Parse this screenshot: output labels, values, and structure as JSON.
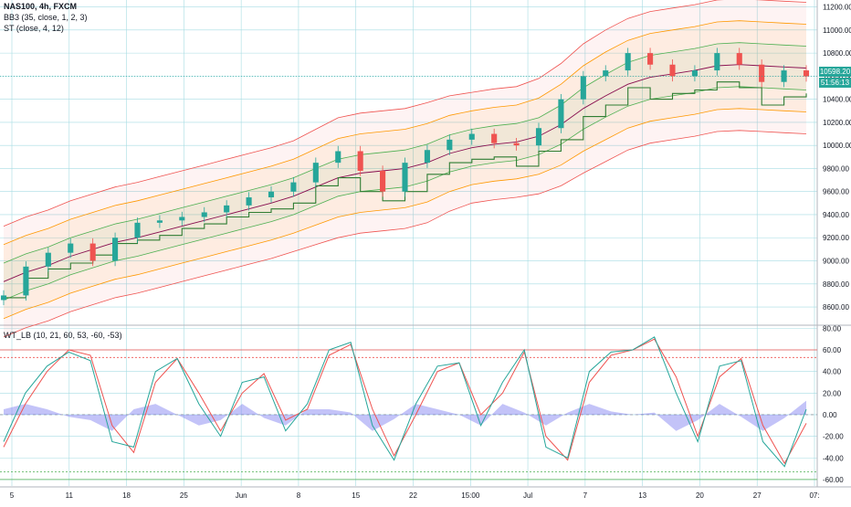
{
  "legend": {
    "symbol": "NAS100, 4h, FXCM",
    "bb": "BB3 (35, close, 1, 2, 3)",
    "st": "ST (close, 4, 12)",
    "wt": "WT_LB (10, 21, 60, 53, -60, -53)"
  },
  "price_tag": {
    "last": "10598.20",
    "countdown": "51:56:13"
  },
  "colors": {
    "up": "#26a69a",
    "down": "#ef5350",
    "wt1": "#26a69a",
    "wt2": "#ef5350",
    "histogram": "#7b7bf0",
    "ob_level": "#ef5350",
    "os_level": "#4caf50",
    "bb_outer": "#ef5350",
    "bb_mid": "#ff9800",
    "bb_inner": "#4caf50",
    "basis": "#880e4f",
    "st_up": "#2e7d32",
    "st_down": "#ef5350"
  },
  "chart_data": [
    {
      "type": "line",
      "title": "NAS100, 4h, FXCM",
      "y_ticks": [
        "11200.00",
        "11000.00",
        "10800.00",
        "10600.00",
        "10400.00",
        "10200.00",
        "10000.00",
        "9800.00",
        "9600.00",
        "9400.00",
        "9200.00",
        "9000.00",
        "8800.00",
        "8600.00"
      ],
      "ylim": [
        8450,
        11260
      ],
      "x_ticks": [
        "5",
        "11",
        "18",
        "25",
        "Jun",
        "8",
        "15",
        "22",
        "15:00",
        "Jul",
        "7",
        "13",
        "20",
        "27",
        "07:"
      ],
      "x": [
        "May 5",
        "May 8",
        "May 11",
        "May 13",
        "May 15",
        "May 18",
        "May 20",
        "May 22",
        "May 25",
        "May 27",
        "May 29",
        "Jun 1",
        "Jun 3",
        "Jun 5",
        "Jun 8",
        "Jun 10",
        "Jun 12",
        "Jun 15",
        "Jun 17",
        "Jun 19",
        "Jun 22",
        "Jun 24",
        "Jun 26",
        "Jun 29",
        "Jul 1",
        "Jul 3",
        "Jul 7",
        "Jul 9",
        "Jul 11",
        "Jul 13",
        "Jul 15",
        "Jul 17",
        "Jul 20",
        "Jul 22",
        "Jul 24",
        "Jul 27",
        "Jul 29"
      ],
      "series": [
        {
          "values": [
            8700,
            8950,
            9070,
            9150,
            9000,
            9200,
            9330,
            9350,
            9380,
            9420,
            9480,
            9550,
            9600,
            9680,
            9850,
            9950,
            9780,
            9600,
            9850,
            9960,
            10050,
            10100,
            10020,
            10000,
            10150,
            10400,
            10600,
            10650,
            10800,
            10700,
            10600,
            10650,
            10800,
            10700,
            10550,
            10650,
            10598
          ]
        }
      ],
      "st_values": [
        8680,
        8850,
        8930,
        8980,
        9050,
        9150,
        9180,
        9220,
        9280,
        9320,
        9380,
        9420,
        9450,
        9500,
        9650,
        9720,
        9600,
        9520,
        9600,
        9750,
        9850,
        9880,
        9900,
        9820,
        9950,
        10050,
        10250,
        10350,
        10500,
        10400,
        10450,
        10480,
        10550,
        10500,
        10350,
        10420,
        10450
      ],
      "bb_basis": [
        8820,
        8900,
        8960,
        9040,
        9100,
        9160,
        9200,
        9250,
        9300,
        9350,
        9400,
        9450,
        9500,
        9560,
        9640,
        9720,
        9760,
        9780,
        9800,
        9850,
        9930,
        9980,
        10010,
        10030,
        10080,
        10180,
        10320,
        10430,
        10530,
        10590,
        10620,
        10650,
        10690,
        10700,
        10690,
        10680,
        10670
      ],
      "bb_inner_offset": [
        160,
        160,
        160,
        160,
        160,
        160,
        160,
        160,
        160,
        160,
        160,
        160,
        160,
        160,
        160,
        160,
        160,
        160,
        160,
        160,
        160,
        160,
        160,
        160,
        160,
        170,
        180,
        185,
        190,
        190,
        190,
        190,
        190,
        190,
        190,
        190,
        190
      ],
      "bb_mid_offset": [
        320,
        320,
        320,
        320,
        320,
        320,
        320,
        320,
        320,
        320,
        320,
        320,
        320,
        320,
        330,
        340,
        340,
        340,
        340,
        340,
        330,
        320,
        320,
        320,
        330,
        350,
        370,
        380,
        380,
        380,
        380,
        380,
        380,
        380,
        380,
        380,
        380
      ],
      "bb_outer_offset": [
        480,
        480,
        480,
        480,
        480,
        480,
        480,
        480,
        480,
        480,
        480,
        480,
        480,
        480,
        500,
        520,
        520,
        520,
        520,
        520,
        500,
        480,
        480,
        480,
        500,
        530,
        560,
        570,
        570,
        570,
        570,
        570,
        570,
        570,
        570,
        570,
        570
      ],
      "marker": {
        "last_price": 10598.2
      }
    },
    {
      "type": "line",
      "title": "WT_LB (10, 21, 60, 53, -60, -53)",
      "y_ticks": [
        "80.00",
        "60.00",
        "40.00",
        "20.00",
        "0.00",
        "-20.00",
        "-40.00",
        "-60.00"
      ],
      "ylim": [
        -66,
        82
      ],
      "levels": [
        60,
        53,
        -53,
        -60
      ],
      "x": [
        "May 5",
        "May 7",
        "May 9",
        "May 11",
        "May 13",
        "May 15",
        "May 18",
        "May 20",
        "May 22",
        "May 25",
        "May 27",
        "May 29",
        "Jun 1",
        "Jun 3",
        "Jun 5",
        "Jun 8",
        "Jun 10",
        "Jun 12",
        "Jun 15",
        "Jun 17",
        "Jun 19",
        "Jun 22",
        "Jun 24",
        "Jun 26",
        "Jun 29",
        "Jul 1",
        "Jul 3",
        "Jul 6",
        "Jul 8",
        "Jul 10",
        "Jul 13",
        "Jul 15",
        "Jul 17",
        "Jul 20",
        "Jul 22",
        "Jul 24",
        "Jul 27",
        "Jul 29"
      ],
      "series": [
        {
          "name": "wt1",
          "values": [
            -25,
            20,
            45,
            58,
            50,
            -25,
            -30,
            40,
            52,
            10,
            -20,
            30,
            35,
            -15,
            10,
            60,
            67,
            -10,
            -42,
            10,
            45,
            48,
            -10,
            30,
            60,
            -30,
            -40,
            40,
            58,
            60,
            72,
            20,
            -25,
            45,
            50,
            -25,
            -48,
            5
          ]
        },
        {
          "name": "wt2",
          "values": [
            -30,
            10,
            40,
            60,
            55,
            -10,
            -35,
            30,
            52,
            20,
            -15,
            20,
            38,
            -5,
            5,
            55,
            65,
            5,
            -38,
            0,
            40,
            48,
            0,
            20,
            58,
            -20,
            -42,
            30,
            55,
            60,
            70,
            35,
            -20,
            35,
            52,
            -10,
            -45,
            -8
          ]
        },
        {
          "name": "histogram",
          "values": [
            5,
            10,
            5,
            -2,
            -5,
            -15,
            5,
            10,
            0,
            -10,
            -5,
            10,
            -3,
            -10,
            5,
            5,
            2,
            -15,
            -4,
            10,
            5,
            0,
            -10,
            10,
            2,
            -10,
            2,
            10,
            3,
            0,
            2,
            -15,
            -5,
            10,
            -2,
            -15,
            -3,
            13
          ]
        }
      ]
    }
  ]
}
